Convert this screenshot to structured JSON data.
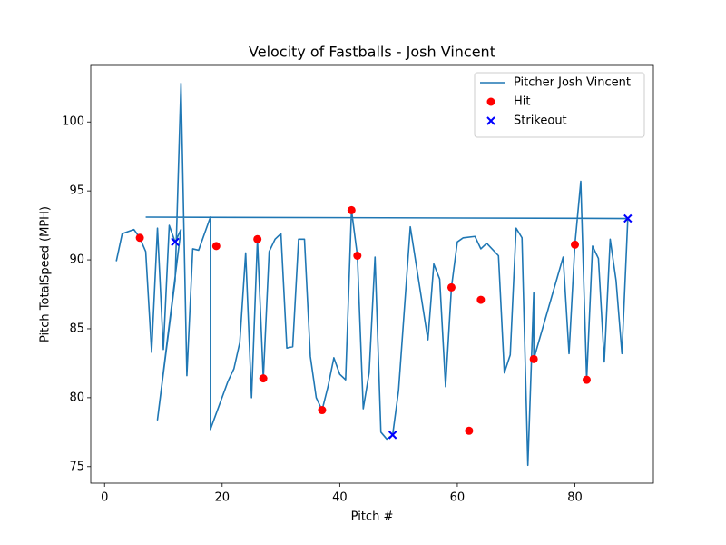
{
  "chart_data": {
    "type": "line",
    "title": "Velocity of Fastballs - Josh Vincent",
    "x_label": "Pitch #",
    "y_label": "Pitch TotalSpeed (MPH)",
    "xlim": [
      -2.35,
      93.35
    ],
    "xticks": [
      0,
      20,
      40,
      60,
      80
    ],
    "ylim": [
      73.8,
      104.1
    ],
    "yticks": [
      75,
      80,
      85,
      90,
      95,
      100
    ],
    "legend": "upper right",
    "grid": false,
    "series": [
      {
        "name": "Pitcher Josh Vincent",
        "color": "#1f77b4",
        "type": "line",
        "x": [
          2,
          3,
          5,
          6,
          7,
          8,
          9,
          10,
          11,
          12,
          13,
          9,
          12,
          13,
          14,
          15,
          16,
          18,
          18,
          21,
          22,
          23,
          24,
          25,
          26,
          27,
          28,
          29,
          30,
          31,
          32,
          33,
          34,
          35,
          36,
          37,
          38,
          39,
          40,
          41,
          42,
          43,
          44,
          45,
          46,
          47,
          48,
          49,
          50,
          52,
          55,
          56,
          57,
          58,
          59,
          60,
          61,
          63,
          64,
          65,
          67,
          68,
          69,
          70,
          71,
          72,
          73,
          73,
          78,
          79,
          80,
          81,
          82,
          83,
          84,
          85,
          86,
          87,
          88,
          89,
          7
        ],
        "values": [
          89.9,
          91.9,
          92.2,
          91.6,
          90.6,
          83.3,
          92.3,
          83.5,
          92.5,
          91.3,
          92.2,
          78.4,
          88.5,
          102.8,
          81.6,
          90.8,
          90.7,
          93.1,
          77.7,
          81.2,
          82.1,
          84.0,
          90.5,
          80.0,
          91.5,
          81.4,
          90.6,
          91.5,
          91.9,
          83.6,
          83.7,
          91.5,
          91.5,
          83.0,
          80.0,
          79.1,
          80.8,
          82.9,
          81.7,
          81.3,
          93.6,
          90.3,
          79.2,
          81.8,
          90.2,
          77.5,
          77.0,
          77.3,
          80.5,
          92.4,
          84.2,
          89.7,
          88.6,
          80.8,
          88.0,
          91.3,
          91.6,
          91.7,
          90.8,
          91.2,
          90.3,
          81.8,
          83.1,
          92.3,
          91.6,
          75.1,
          87.6,
          82.8,
          90.2,
          83.2,
          91.1,
          95.7,
          81.3,
          91.0,
          90.1,
          82.6,
          91.5,
          88.5,
          83.2,
          93.0,
          93.1
        ]
      },
      {
        "name": "Hit",
        "color": "#ff0000",
        "type": "scatter",
        "marker": "o",
        "x": [
          6,
          19,
          26,
          27,
          37,
          42,
          43,
          59,
          62,
          64,
          73,
          80,
          82
        ],
        "values": [
          91.6,
          91.0,
          91.5,
          81.4,
          79.1,
          93.6,
          90.3,
          88.0,
          77.6,
          87.1,
          82.8,
          91.1,
          81.3
        ]
      },
      {
        "name": "Strikeout",
        "color": "#0000ff",
        "type": "scatter",
        "marker": "x",
        "x": [
          12,
          49,
          89
        ],
        "values": [
          91.3,
          77.3,
          93.0
        ]
      }
    ]
  }
}
